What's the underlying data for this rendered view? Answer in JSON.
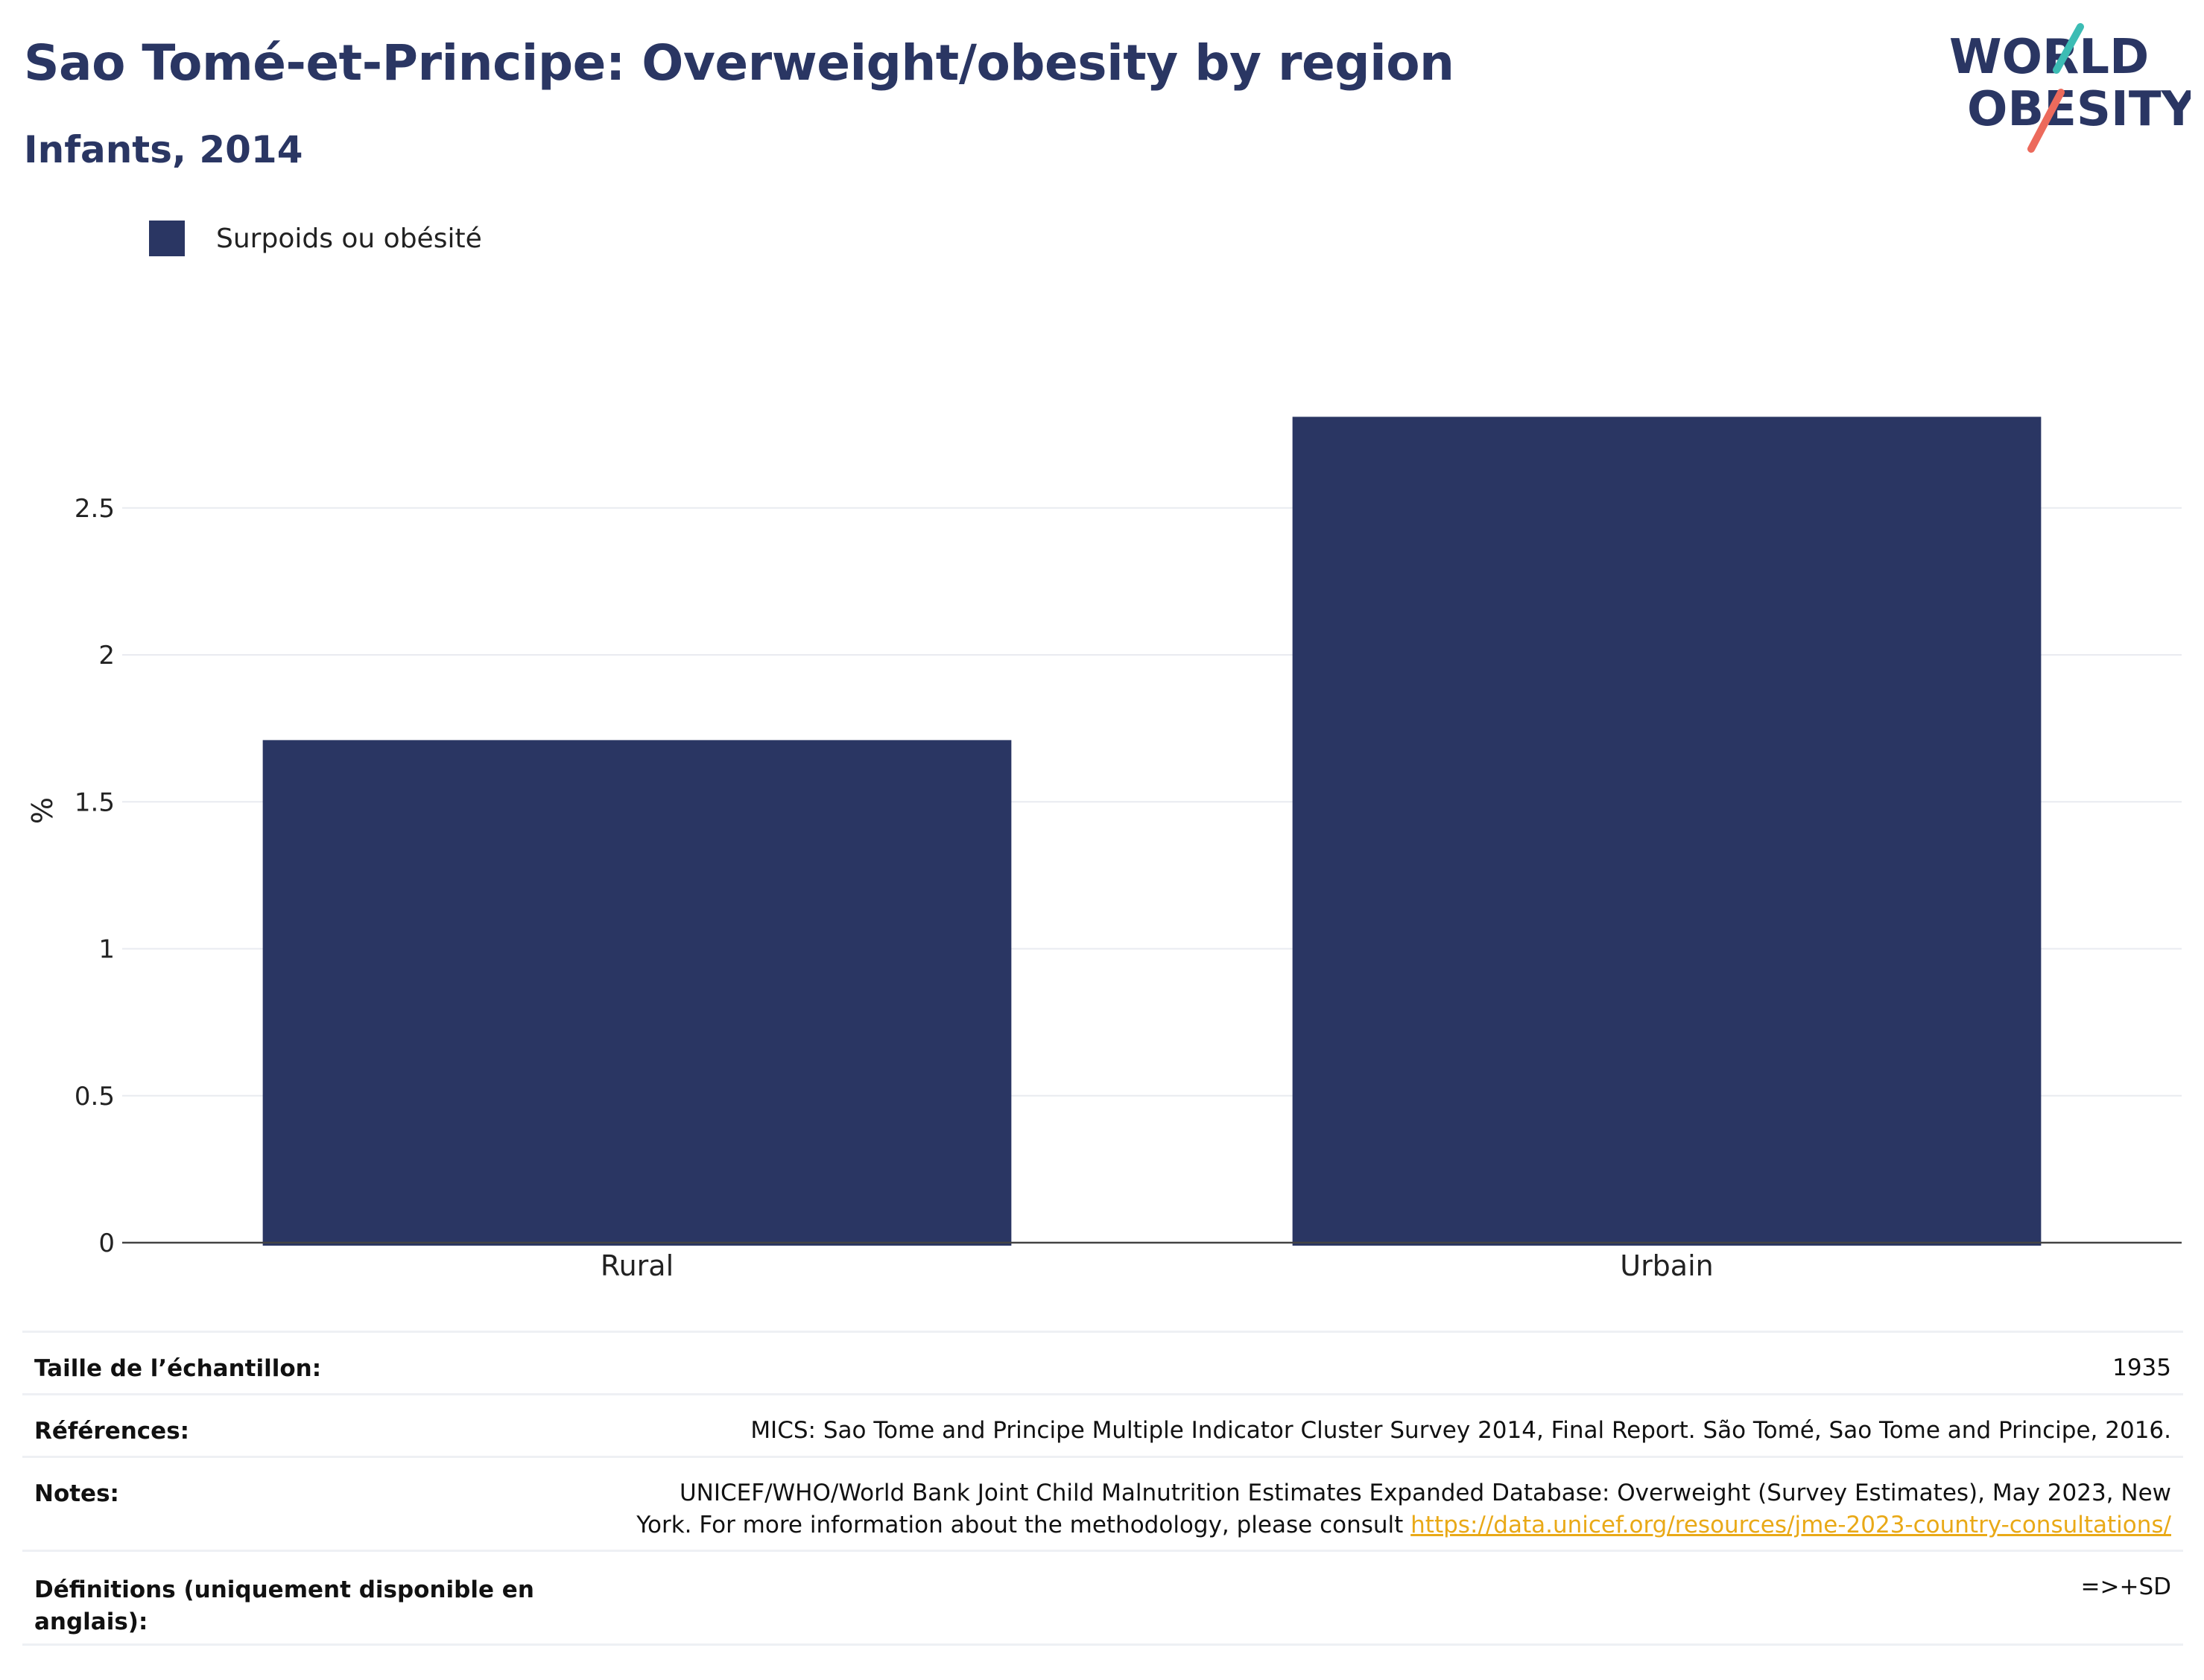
{
  "title": "Sao Tomé-et-Principe: Overweight/obesity by region",
  "subtitle": "Infants, 2014",
  "logo": {
    "line1": "WORLD",
    "line2": "OBESITY"
  },
  "colors": {
    "bar": "#2a3663",
    "title": "#2a3663",
    "link": "#e9a917",
    "accent_teal": "#3cbcb4",
    "accent_coral": "#ec6a5c"
  },
  "legend": {
    "label": "Surpoids ou obésité"
  },
  "chart_data": {
    "type": "bar",
    "categories": [
      "Rural",
      "Urbain"
    ],
    "series": [
      {
        "name": "Surpoids ou obésité",
        "values": [
          1.71,
          2.81
        ]
      }
    ],
    "ylabel": "%",
    "xlabel": "",
    "ylim": [
      0,
      2.95
    ],
    "yticks": [
      0,
      0.5,
      1,
      1.5,
      2,
      2.5
    ],
    "ytick_labels": [
      "0",
      "0.5",
      "1",
      "1.5",
      "2",
      "2.5"
    ],
    "grid": true
  },
  "info": {
    "sample_label": "Taille de l’échantillon:",
    "sample_value": "1935",
    "references_label": "Références:",
    "references_value": "MICS: Sao Tome and Principe Multiple Indicator Cluster Survey 2014, Final Report. São Tomé, Sao Tome and Principe, 2016.",
    "notes_label": "Notes:",
    "notes_line1": "UNICEF/WHO/World Bank Joint Child Malnutrition Estimates Expanded Database: Overweight (Survey Estimates), May 2023, New",
    "notes_line2": "York. For more information about the methodology, please consult",
    "notes_link": "https://data.unicef.org/resources/jme-2023-country-consultations/",
    "definitions_label": "Définitions (uniquement disponible en anglais):",
    "definitions_value": "=>+SD"
  }
}
